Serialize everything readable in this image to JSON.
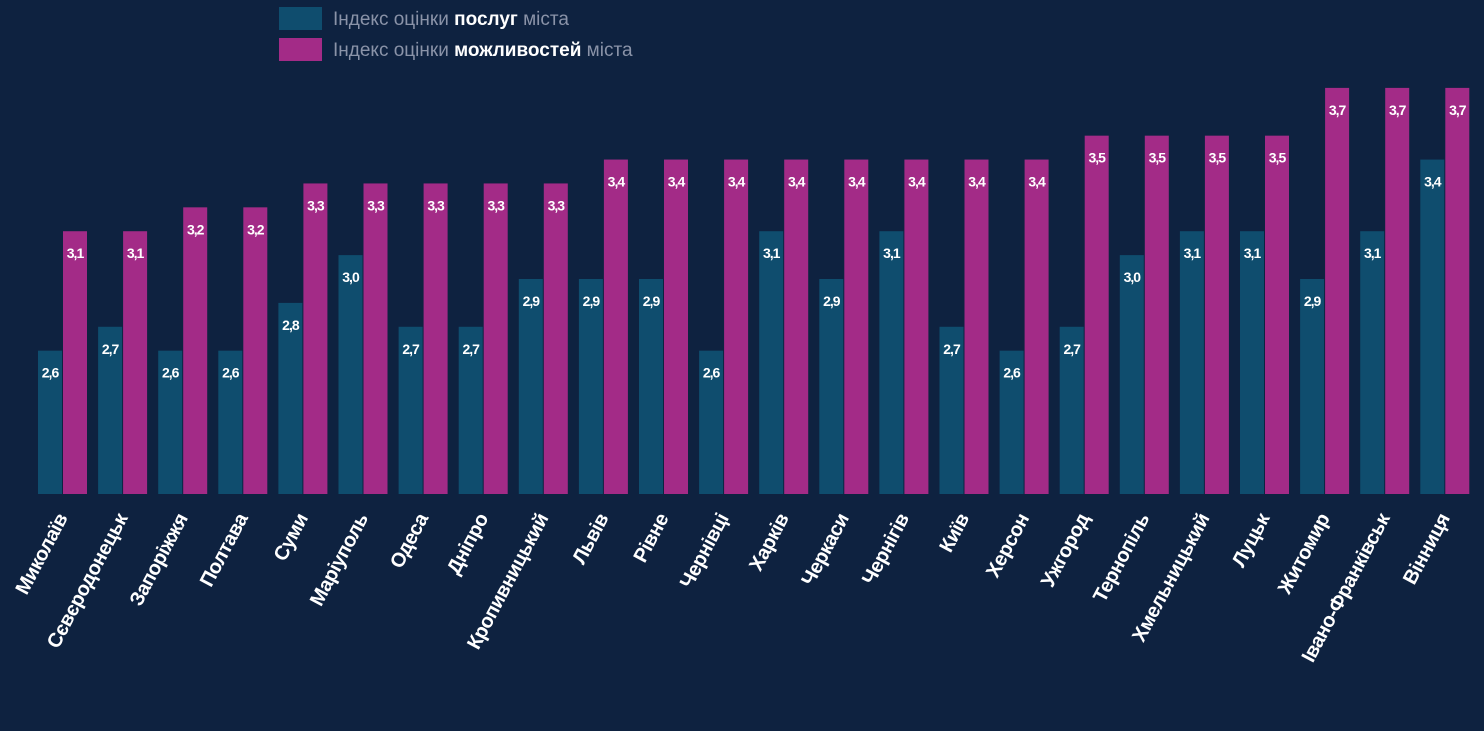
{
  "chart_data": {
    "type": "bar",
    "categories": [
      "Миколаїв",
      "Сєвєродонецьк",
      "Запоріжжя",
      "Полтава",
      "Суми",
      "Маріуполь",
      "Одеса",
      "Дніпро",
      "Кропивницький",
      "Львів",
      "Рівне",
      "Чернівці",
      "Харків",
      "Черкаси",
      "Чернігів",
      "Київ",
      "Херсон",
      "Ужгород",
      "Тернопіль",
      "Хмельницький",
      "Луцьк",
      "Житомир",
      "Івано-Франківськ",
      "Вінниця"
    ],
    "series": [
      {
        "name": "Індекс оцінки послуг міста",
        "color": "#0f4d6e",
        "values": [
          2.6,
          2.7,
          2.6,
          2.6,
          2.8,
          3.0,
          2.7,
          2.7,
          2.9,
          2.9,
          2.9,
          2.6,
          3.1,
          2.9,
          3.1,
          2.7,
          2.6,
          2.7,
          3.0,
          3.1,
          3.1,
          2.9,
          3.1,
          3.4
        ],
        "value_labels": [
          "2,6",
          "2,7",
          "2,6",
          "2,6",
          "2,8",
          "3,0",
          "2,7",
          "2,7",
          "2,9",
          "2,9",
          "2,9",
          "2,6",
          "3,1",
          "2,9",
          "3,1",
          "2,7",
          "2,6",
          "2,7",
          "3,0",
          "3,1",
          "3,1",
          "2,9",
          "3,1",
          "3,4"
        ]
      },
      {
        "name": "Індекс оцінки можливостей міста",
        "color": "#a32b87",
        "values": [
          3.1,
          3.1,
          3.2,
          3.2,
          3.3,
          3.3,
          3.3,
          3.3,
          3.3,
          3.4,
          3.4,
          3.4,
          3.4,
          3.4,
          3.4,
          3.4,
          3.4,
          3.5,
          3.5,
          3.5,
          3.5,
          3.7,
          3.7,
          3.7
        ],
        "value_labels": [
          "3,1",
          "3,1",
          "3,2",
          "3,2",
          "3,3",
          "3,3",
          "3,3",
          "3,3",
          "3,3",
          "3,4",
          "3,4",
          "3,4",
          "3,4",
          "3,4",
          "3,4",
          "3,4",
          "3,4",
          "3,5",
          "3,5",
          "3,5",
          "3,5",
          "3,7",
          "3,7",
          "3,7"
        ]
      }
    ],
    "ylim": [
      2,
      3.8
    ]
  }
}
